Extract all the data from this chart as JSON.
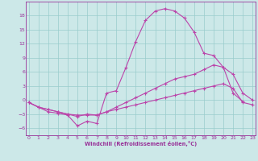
{
  "x": [
    0,
    1,
    2,
    3,
    4,
    5,
    6,
    7,
    8,
    9,
    10,
    11,
    12,
    13,
    14,
    15,
    16,
    17,
    18,
    19,
    20,
    21,
    22,
    23
  ],
  "line1": [
    -0.5,
    -1.5,
    -2.5,
    -2.8,
    -3.2,
    -5.5,
    -4.5,
    -5.0,
    1.5,
    2.0,
    7.0,
    12.5,
    17.0,
    19.0,
    19.5,
    19.0,
    17.5,
    14.5,
    10.0,
    9.5,
    7.0,
    1.5,
    -0.3,
    null
  ],
  "line2": [
    -0.5,
    -1.5,
    -2.0,
    -2.5,
    -3.0,
    -3.2,
    -3.2,
    -3.2,
    -2.5,
    -1.5,
    -0.5,
    0.5,
    1.5,
    2.5,
    3.5,
    4.5,
    5.0,
    5.5,
    6.5,
    7.5,
    7.0,
    5.5,
    1.5,
    0.0
  ],
  "line3": [
    -0.5,
    -1.5,
    -2.0,
    -2.5,
    -3.0,
    -3.5,
    -3.0,
    -3.2,
    -2.5,
    -2.0,
    -1.5,
    -1.0,
    -0.5,
    0.0,
    0.5,
    1.0,
    1.5,
    2.0,
    2.5,
    3.0,
    3.5,
    2.5,
    -0.5,
    -1.0
  ],
  "color": "#bb44aa",
  "bg_color": "#cce8e8",
  "grid_color": "#99cccc",
  "axis_color": "#993399",
  "text_color": "#993399",
  "xlabel": "Windchill (Refroidissement éolien,°C)",
  "yticks": [
    -6,
    -3,
    0,
    3,
    6,
    9,
    12,
    15,
    18
  ],
  "xticks": [
    0,
    1,
    2,
    3,
    4,
    5,
    6,
    7,
    8,
    9,
    10,
    11,
    12,
    13,
    14,
    15,
    16,
    17,
    18,
    19,
    20,
    21,
    22,
    23
  ],
  "ylim": [
    -7.5,
    21.0
  ],
  "xlim": [
    -0.3,
    23.3
  ]
}
